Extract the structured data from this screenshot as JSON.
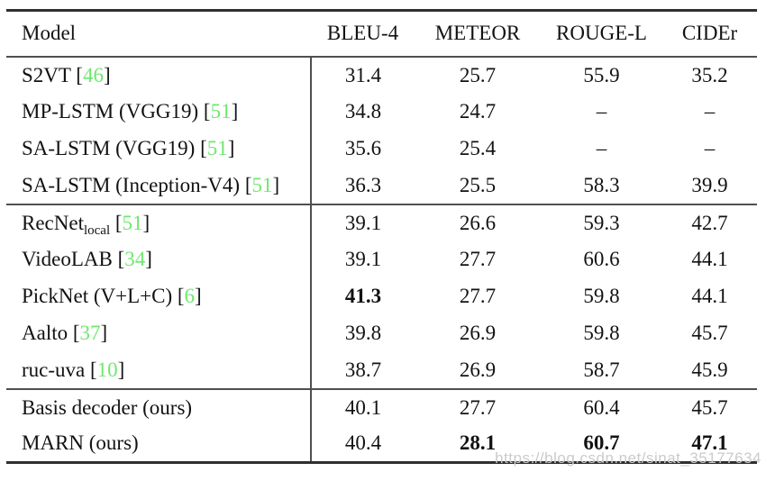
{
  "colors": {
    "citation_green": "#6ee86e",
    "text": "#121212",
    "rule": "#2f2f2f",
    "watermark_gray": "#cbcbcb",
    "background": "#ffffff"
  },
  "watermark": {
    "text": "https://blog.csdn.net/sinat_35177634"
  },
  "table": {
    "columns": [
      "Model",
      "BLEU-4",
      "METEOR",
      "ROUGE-L",
      "CIDEr"
    ],
    "sections": [
      {
        "rows": [
          {
            "name": "S2VT",
            "sub": "",
            "cite": "46",
            "values": [
              "31.4",
              "25.7",
              "55.9",
              "35.2"
            ],
            "bold": [
              false,
              false,
              false,
              false
            ]
          },
          {
            "name": "MP-LSTM (VGG19)",
            "sub": "",
            "cite": "51",
            "values": [
              "34.8",
              "24.7",
              "–",
              "–"
            ],
            "bold": [
              false,
              false,
              false,
              false
            ]
          },
          {
            "name": "SA-LSTM (VGG19)",
            "sub": "",
            "cite": "51",
            "values": [
              "35.6",
              "25.4",
              "–",
              "–"
            ],
            "bold": [
              false,
              false,
              false,
              false
            ]
          },
          {
            "name": "SA-LSTM (Inception-V4)",
            "sub": "",
            "cite": "51",
            "values": [
              "36.3",
              "25.5",
              "58.3",
              "39.9"
            ],
            "bold": [
              false,
              false,
              false,
              false
            ]
          }
        ]
      },
      {
        "rows": [
          {
            "name": "RecNet",
            "sub": "local",
            "cite": "51",
            "values": [
              "39.1",
              "26.6",
              "59.3",
              "42.7"
            ],
            "bold": [
              false,
              false,
              false,
              false
            ]
          },
          {
            "name": "VideoLAB",
            "sub": "",
            "cite": "34",
            "values": [
              "39.1",
              "27.7",
              "60.6",
              "44.1"
            ],
            "bold": [
              false,
              false,
              false,
              false
            ]
          },
          {
            "name": "PickNet (V+L+C)",
            "sub": "",
            "cite": "6",
            "values": [
              "41.3",
              "27.7",
              "59.8",
              "44.1"
            ],
            "bold": [
              true,
              false,
              false,
              false
            ]
          },
          {
            "name": "Aalto",
            "sub": "",
            "cite": "37",
            "values": [
              "39.8",
              "26.9",
              "59.8",
              "45.7"
            ],
            "bold": [
              false,
              false,
              false,
              false
            ]
          },
          {
            "name": "ruc-uva",
            "sub": "",
            "cite": "10",
            "values": [
              "38.7",
              "26.9",
              "58.7",
              "45.9"
            ],
            "bold": [
              false,
              false,
              false,
              false
            ]
          }
        ]
      },
      {
        "rows": [
          {
            "name": "Basis decoder (ours)",
            "sub": "",
            "cite": "",
            "values": [
              "40.1",
              "27.7",
              "60.4",
              "45.7"
            ],
            "bold": [
              false,
              false,
              false,
              false
            ]
          },
          {
            "name": "MARN (ours)",
            "sub": "",
            "cite": "",
            "values": [
              "40.4",
              "28.1",
              "60.7",
              "47.1"
            ],
            "bold": [
              false,
              true,
              true,
              true
            ]
          }
        ]
      }
    ]
  }
}
